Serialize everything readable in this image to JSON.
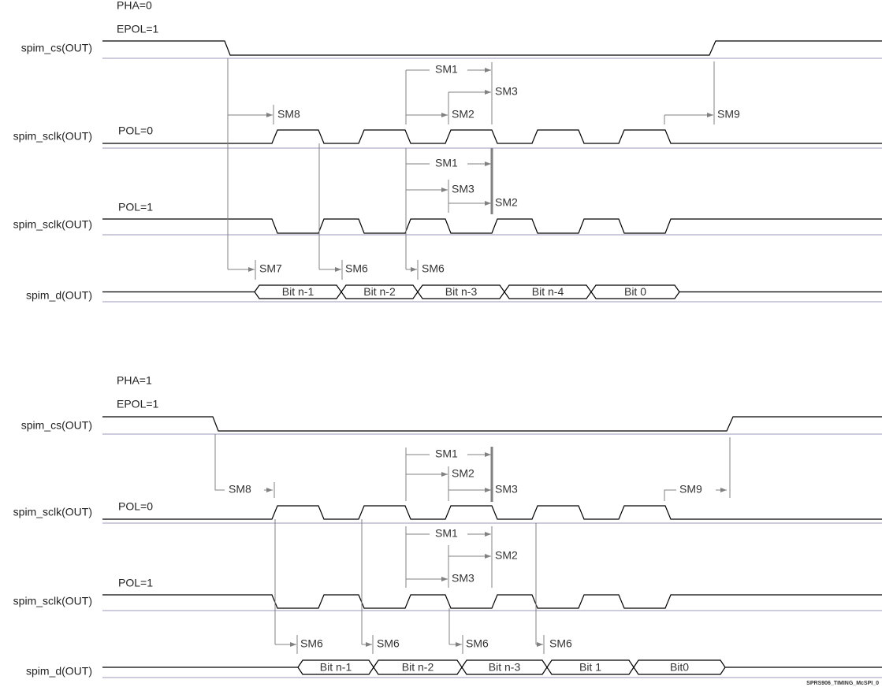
{
  "diagram": {
    "footer": "SPRS906_TIMING_McSPI_0",
    "colors": {
      "signal": "#000000",
      "annotation": "#808080",
      "separator": "#9a9ab8"
    },
    "top": {
      "pha": "PHA=0",
      "epol": "EPOL=1",
      "signals": [
        "spim_cs(OUT)",
        "spim_sclk(OUT)",
        "spim_sclk(OUT)",
        "spim_d(OUT)"
      ],
      "pol0": "POL=0",
      "pol1": "POL=1",
      "bits": [
        "Bit n-1",
        "Bit n-2",
        "Bit n-3",
        "Bit n-4",
        "Bit 0"
      ],
      "timings": [
        "SM8",
        "SM1",
        "SM2",
        "SM3",
        "SM9",
        "SM1",
        "SM3",
        "SM2",
        "SM7",
        "SM6",
        "SM6"
      ]
    },
    "bottom": {
      "pha": "PHA=1",
      "epol": "EPOL=1",
      "signals": [
        "spim_cs(OUT)",
        "spim_sclk(OUT)",
        "spim_sclk(OUT)",
        "spim_d(OUT)"
      ],
      "pol0": "POL=0",
      "pol1": "POL=1",
      "bits": [
        "Bit n-1",
        "Bit n-2",
        "Bit n-3",
        "Bit 1",
        "Bit0"
      ],
      "timings": [
        "SM8",
        "SM1",
        "SM2",
        "SM3",
        "SM9",
        "SM1",
        "SM2",
        "SM3",
        "SM6",
        "SM6",
        "SM6",
        "SM6"
      ]
    }
  }
}
